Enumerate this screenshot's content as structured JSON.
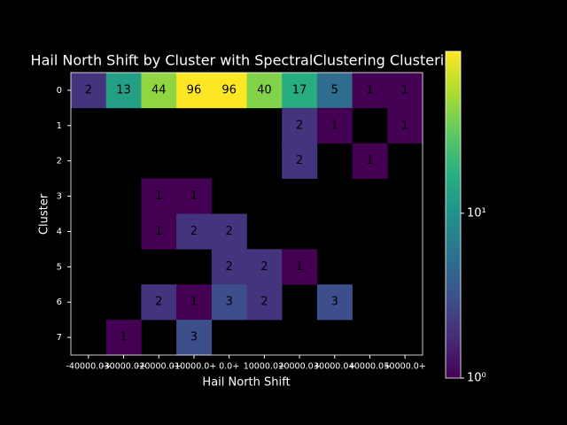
{
  "chart_data": {
    "type": "heatmap",
    "title": "Hail North Shift by Cluster with SpectralClustering Clustering",
    "x_label": "Hail North Shift",
    "y_label": "Cluster",
    "x_categories": [
      "-40000.0+",
      "-30000.0+",
      "-20000.0+",
      "-10000.0+",
      "0.0+",
      "10000.0+",
      "20000.0+",
      "30000.0+",
      "40000.0+",
      "50000.0+"
    ],
    "y_categories": [
      "0",
      "1",
      "2",
      "3",
      "4",
      "5",
      "6",
      "7"
    ],
    "z": [
      [
        2,
        13,
        44,
        96,
        96,
        40,
        17,
        5,
        1,
        1
      ],
      [
        null,
        null,
        null,
        null,
        null,
        null,
        2,
        1,
        null,
        1
      ],
      [
        null,
        null,
        null,
        null,
        null,
        null,
        2,
        null,
        1,
        null
      ],
      [
        null,
        null,
        1,
        1,
        null,
        null,
        null,
        null,
        null,
        null
      ],
      [
        null,
        null,
        1,
        2,
        2,
        null,
        null,
        null,
        null,
        null
      ],
      [
        null,
        null,
        null,
        null,
        2,
        2,
        1,
        null,
        null,
        null
      ],
      [
        null,
        null,
        2,
        1,
        3,
        2,
        null,
        3,
        null,
        null
      ],
      [
        null,
        1,
        null,
        3,
        null,
        null,
        null,
        null,
        null,
        null
      ]
    ],
    "colormap": "viridis",
    "log_scale": true,
    "clim": [
      1,
      96
    ],
    "cticks": [
      {
        "value": 1,
        "label": "10⁰"
      },
      {
        "value": 10,
        "label": "10¹"
      }
    ]
  }
}
